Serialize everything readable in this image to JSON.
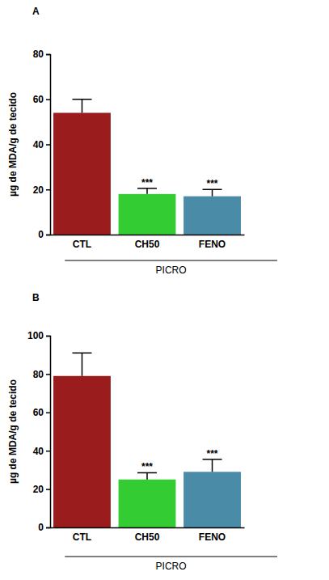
{
  "chart_data": [
    {
      "type": "bar",
      "title": "A",
      "y_label": "µg de MDA/g de tecido",
      "categories": [
        "CTL",
        "CH50",
        "FENO"
      ],
      "values": [
        54,
        18,
        17
      ],
      "errors": [
        6,
        2.5,
        3
      ],
      "colors": [
        "#9b1c1c",
        "#33cc33",
        "#4a8ca8"
      ],
      "significance": [
        null,
        "***",
        "***"
      ],
      "group_label": "PICRO",
      "ylim": [
        0,
        80
      ],
      "yticks": [
        0,
        20,
        40,
        60,
        80
      ]
    },
    {
      "type": "bar",
      "title": "B",
      "y_label": "µg de MDA/g de tecido",
      "categories": [
        "CTL",
        "CH50",
        "FENO"
      ],
      "values": [
        79,
        25,
        29
      ],
      "errors": [
        12,
        3.5,
        6.5
      ],
      "colors": [
        "#9b1c1c",
        "#33cc33",
        "#4a8ca8"
      ],
      "significance": [
        null,
        "***",
        "***"
      ],
      "group_label": "PICRO",
      "ylim": [
        0,
        100
      ],
      "yticks": [
        0,
        20,
        40,
        60,
        80,
        100
      ]
    }
  ]
}
